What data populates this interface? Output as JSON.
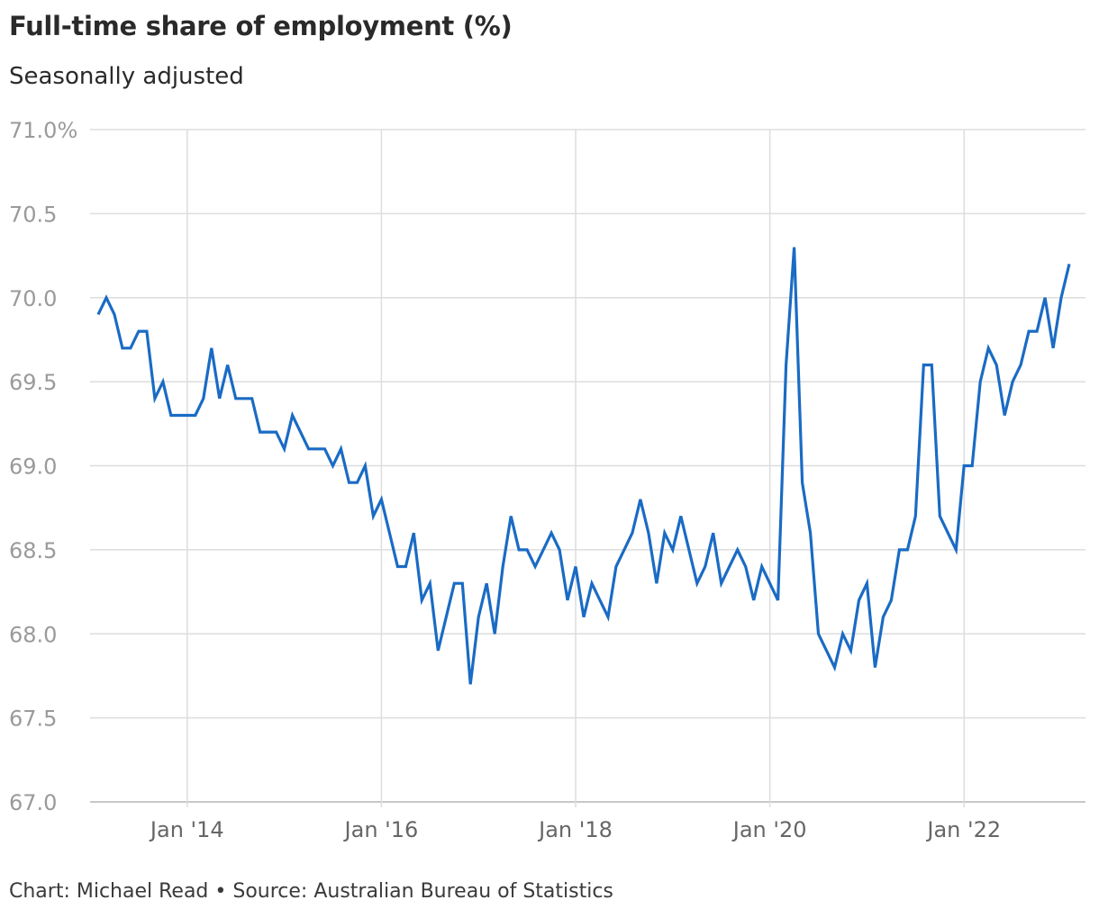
{
  "header": {
    "title": "Full-time share of employment (%)",
    "subtitle": "Seasonally adjusted"
  },
  "footer": {
    "credit": "Chart: Michael Read • Source: Australian Bureau of Statistics"
  },
  "colors": {
    "line": "#1a6bc4",
    "grid": "#dddddd",
    "axis": "#c8c8c8"
  },
  "chart_data": {
    "type": "line",
    "title": "Full-time share of employment (%)",
    "subtitle": "Seasonally adjusted",
    "xlabel": "",
    "ylabel": "",
    "ylim": [
      67.0,
      71.0
    ],
    "yticks": [
      67.0,
      67.5,
      68.0,
      68.5,
      69.0,
      69.5,
      70.0,
      70.5,
      71.0
    ],
    "ytick_labels": [
      "67.0",
      "67.5",
      "68.0",
      "68.5",
      "69.0",
      "69.5",
      "70.0",
      "70.5",
      "71.0%"
    ],
    "xlim": [
      "2013-01",
      "2023-04"
    ],
    "xticks": [
      "2014-01",
      "2016-01",
      "2018-01",
      "2020-01",
      "2022-01"
    ],
    "xtick_labels": [
      "Jan '14",
      "Jan '16",
      "Jan '18",
      "Jan '20",
      "Jan '22"
    ],
    "grid": true,
    "series": [
      {
        "start": "2013-02",
        "frequency": "monthly",
        "values": [
          69.9,
          70.0,
          69.9,
          69.7,
          69.7,
          69.8,
          69.8,
          69.4,
          69.5,
          69.3,
          69.3,
          69.3,
          69.3,
          69.4,
          69.7,
          69.4,
          69.6,
          69.4,
          69.4,
          69.4,
          69.2,
          69.2,
          69.2,
          69.1,
          69.3,
          69.2,
          69.1,
          69.1,
          69.1,
          69.0,
          69.1,
          68.9,
          68.9,
          69.0,
          68.7,
          68.8,
          68.6,
          68.4,
          68.4,
          68.6,
          68.2,
          68.3,
          67.9,
          68.1,
          68.3,
          68.3,
          67.7,
          68.1,
          68.3,
          68.0,
          68.4,
          68.7,
          68.5,
          68.5,
          68.4,
          68.5,
          68.6,
          68.5,
          68.2,
          68.4,
          68.1,
          68.3,
          68.2,
          68.1,
          68.4,
          68.5,
          68.6,
          68.8,
          68.6,
          68.3,
          68.6,
          68.5,
          68.7,
          68.5,
          68.3,
          68.4,
          68.6,
          68.3,
          68.4,
          68.5,
          68.4,
          68.2,
          68.4,
          68.3,
          68.2,
          69.6,
          70.3,
          68.9,
          68.6,
          68.0,
          67.9,
          67.8,
          68.0,
          67.9,
          68.2,
          68.3,
          67.8,
          68.1,
          68.2,
          68.5,
          68.5,
          68.7,
          69.6,
          69.6,
          68.7,
          68.6,
          68.5,
          69.0,
          69.0,
          69.5,
          69.7,
          69.6,
          69.3,
          69.5,
          69.6,
          69.8,
          69.8,
          70.0,
          69.7,
          70.0,
          70.2
        ]
      }
    ]
  }
}
